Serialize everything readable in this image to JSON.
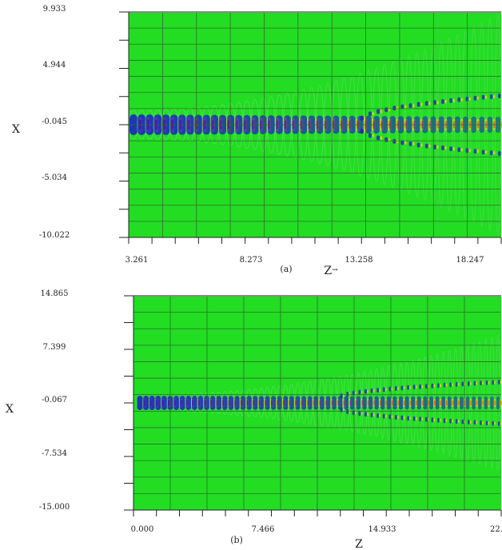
{
  "chart_data": [
    {
      "type": "heatmap",
      "panel_label": "(a)",
      "xlabel": "Z",
      "xlabel_suffix": "→",
      "ylabel": "X",
      "x_ticks": [
        "3.261",
        "8.273",
        "13.258",
        "18.247"
      ],
      "y_ticks": [
        "9.933",
        "4.944",
        "-0.045",
        "-5.034",
        "-10.022"
      ],
      "grid": true,
      "colors": {
        "background": "#22dd22",
        "high": "#ff2a00",
        "mid": "#ffd200",
        "low": "#1a1acc",
        "grid": "#2f6b2f"
      }
    },
    {
      "type": "heatmap",
      "panel_label": "(b)",
      "xlabel": "Z",
      "ylabel": "X",
      "x_ticks": [
        "0.000",
        "7.466",
        "14.933",
        "22."
      ],
      "y_ticks": [
        "14.865",
        "7.399",
        "-0.067",
        "-7.534",
        "-15.000"
      ],
      "grid": true,
      "colors": {
        "background": "#22dd22",
        "high": "#ff2a00",
        "mid": "#ffd200",
        "low": "#1a1acc",
        "grid": "#2f6b2f"
      }
    }
  ]
}
